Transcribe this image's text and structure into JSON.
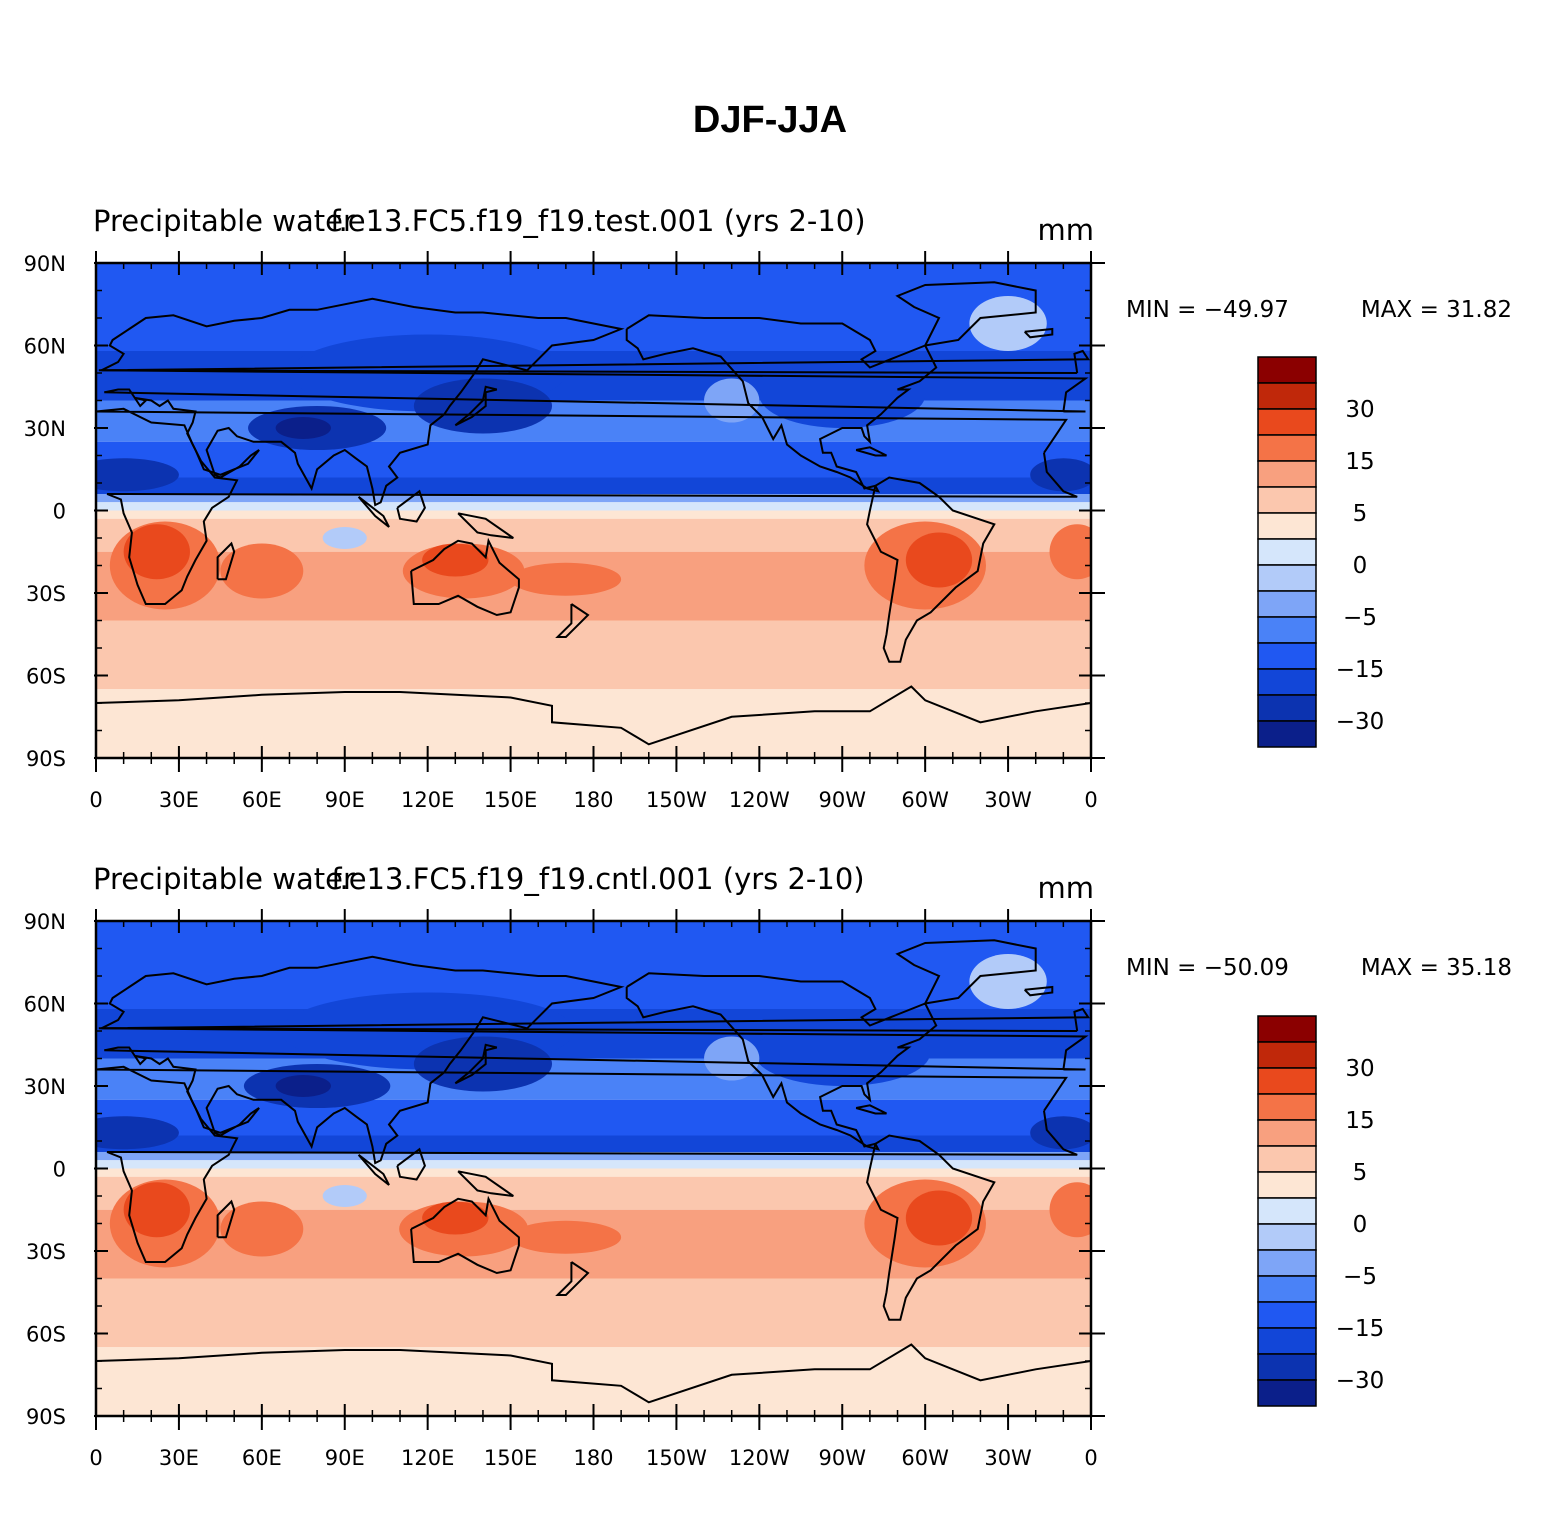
{
  "figure": {
    "title": "DJF-JJA",
    "colors": [
      "#0b1f8a",
      "#0c33b0",
      "#1246d8",
      "#2058f2",
      "#4a82f7",
      "#7ea5f7",
      "#b2cbf9",
      "#d5e6fb",
      "#fde6d4",
      "#fbc7ae",
      "#f8a07f",
      "#f47347",
      "#e9491d",
      "#c0280a",
      "#8b0000"
    ]
  },
  "chart_data": [
    {
      "type": "heatmap",
      "left_title": "Precipitable water",
      "center_title": "f.e13.FC5.f19_f19.test.001 (yrs 2-10)",
      "units": "mm",
      "min_label": "MIN = −49.97",
      "max_label": "MAX =   31.82",
      "x_ticks": [
        "0",
        "30E",
        "60E",
        "90E",
        "120E",
        "150E",
        "180",
        "150W",
        "120W",
        "90W",
        "60W",
        "30W",
        "0"
      ],
      "y_ticks": [
        "90N",
        "60N",
        "30N",
        "0",
        "30S",
        "60S",
        "90S"
      ],
      "colorbar_labels": [
        "30",
        "15",
        "5",
        "0",
        "−5",
        "−15",
        "−30"
      ]
    },
    {
      "type": "heatmap",
      "left_title": "Precipitable water",
      "center_title": "f.e13.FC5.f19_f19.cntl.001 (yrs 2-10)",
      "units": "mm",
      "min_label": "MIN = −50.09",
      "max_label": "MAX =   35.18",
      "x_ticks": [
        "0",
        "30E",
        "60E",
        "90E",
        "120E",
        "150E",
        "180",
        "150W",
        "120W",
        "90W",
        "60W",
        "30W",
        "0"
      ],
      "y_ticks": [
        "90N",
        "60N",
        "30N",
        "0",
        "30S",
        "60S",
        "90S"
      ],
      "colorbar_labels": [
        "30",
        "15",
        "5",
        "0",
        "−5",
        "−15",
        "−30"
      ]
    }
  ]
}
